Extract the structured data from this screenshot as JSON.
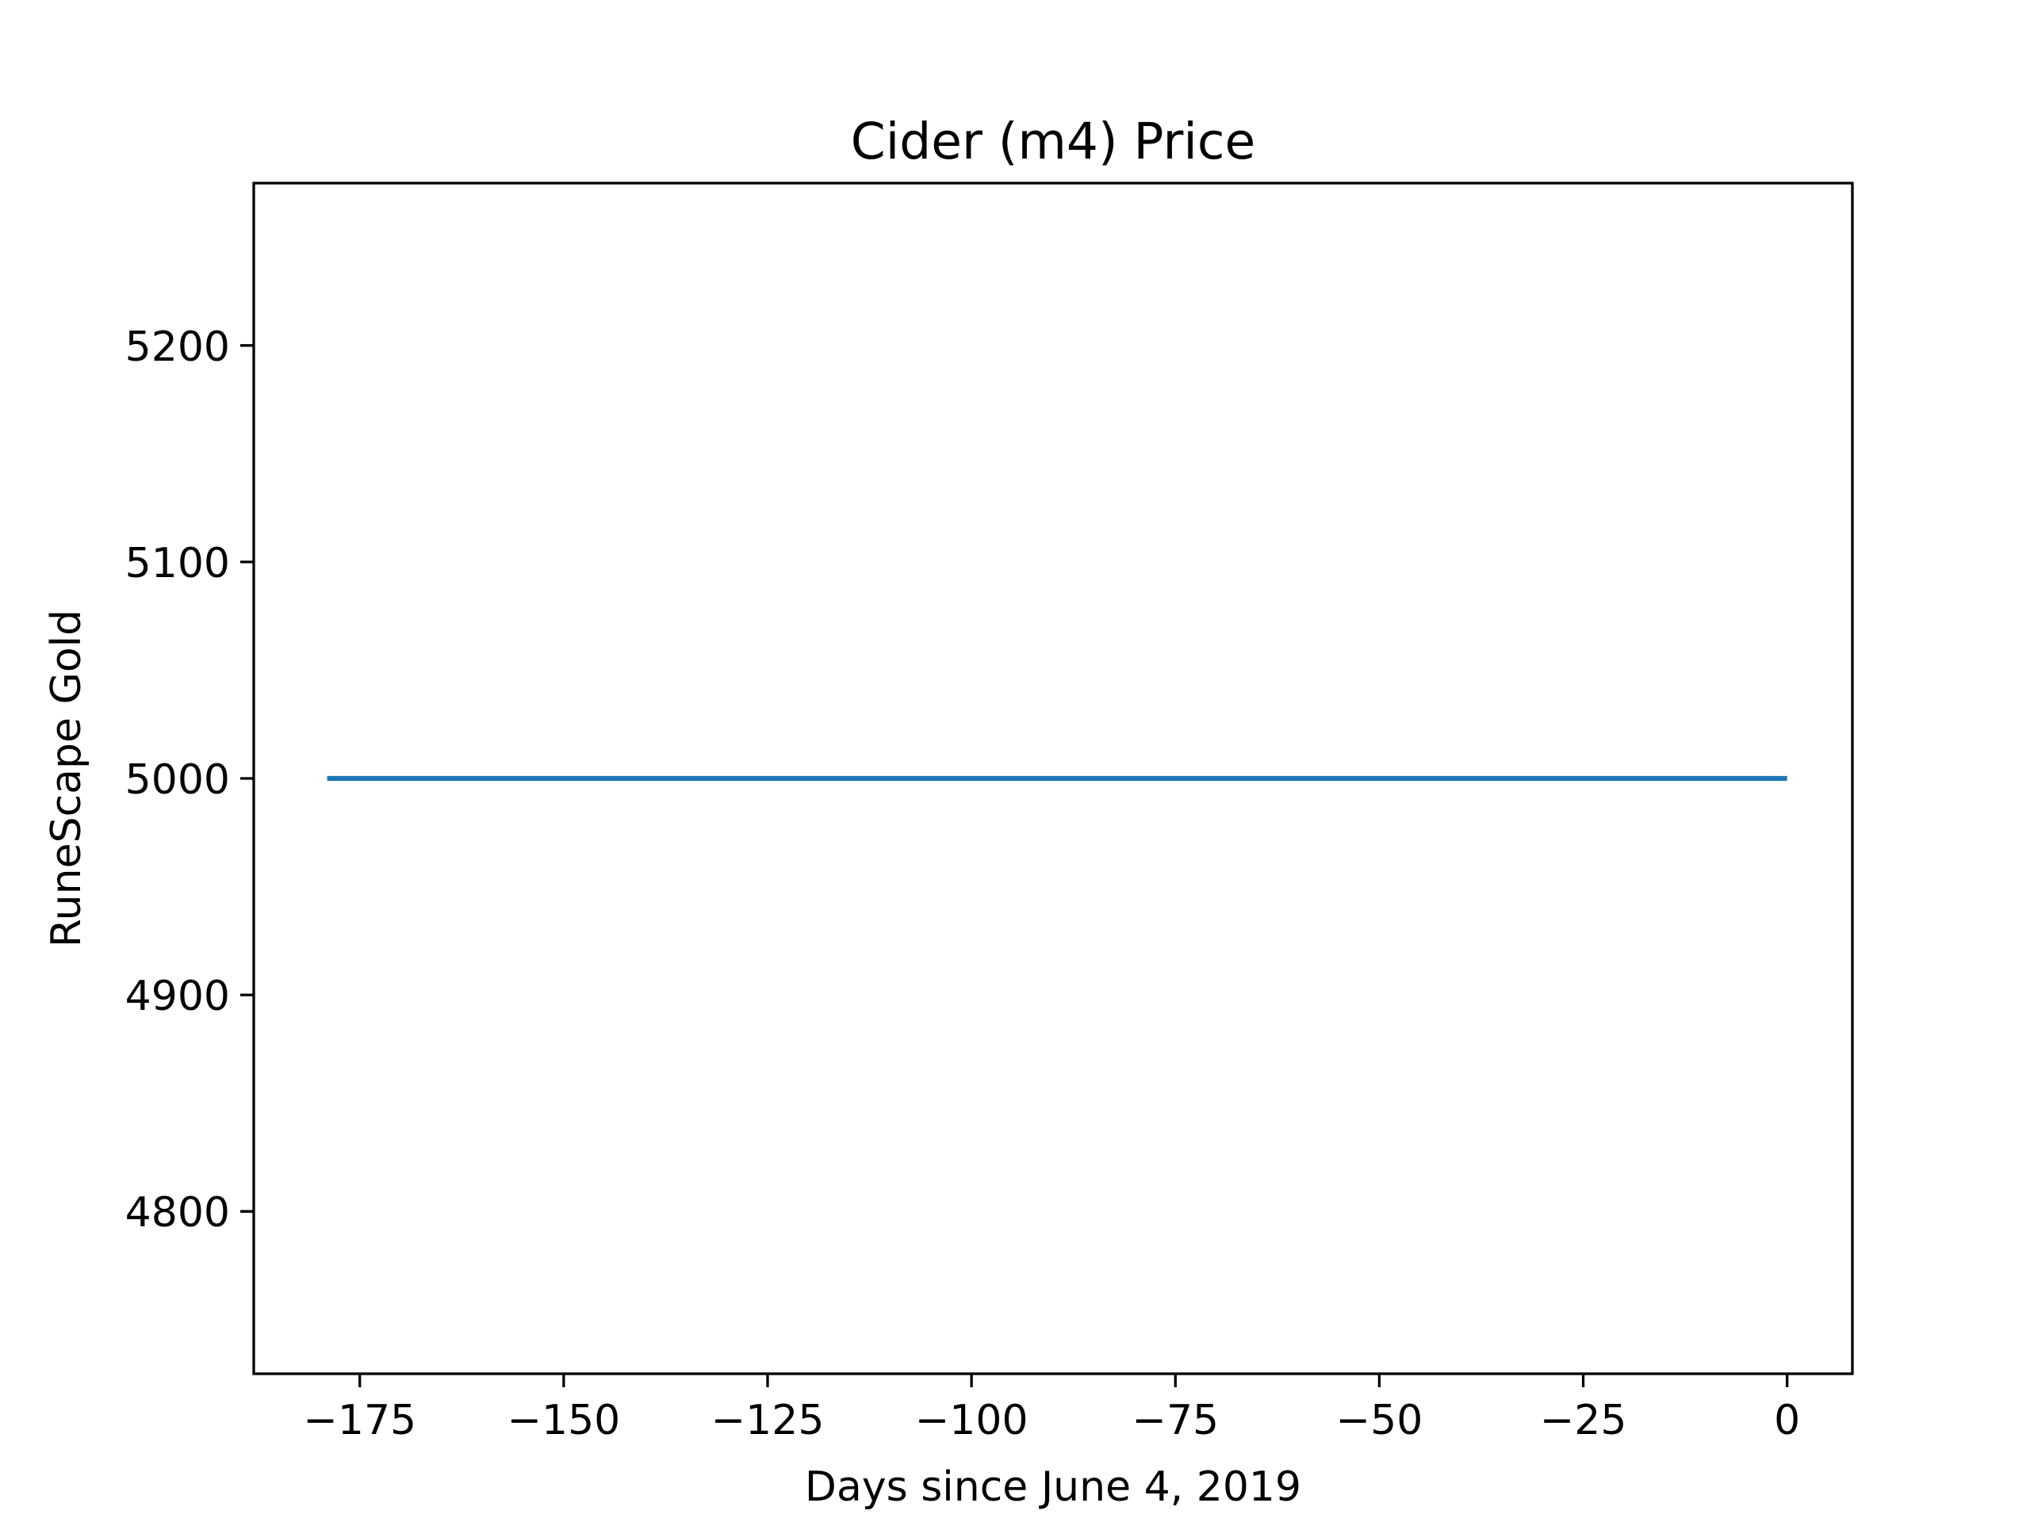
{
  "chart_data": {
    "type": "line",
    "title": "Cider (m4) Price",
    "xlabel": "Days since June 4, 2019",
    "ylabel": "RuneScape Gold",
    "xlim": [
      -188,
      8
    ],
    "ylim": [
      4725,
      5275
    ],
    "xticks": [
      -175,
      -150,
      -125,
      -100,
      -75,
      -50,
      -25,
      0
    ],
    "xtick_labels": [
      "−175",
      "−150",
      "−125",
      "−100",
      "−75",
      "−50",
      "−25",
      "0"
    ],
    "yticks": [
      4800,
      4900,
      5000,
      5100,
      5200
    ],
    "ytick_labels": [
      "4800",
      "4900",
      "5000",
      "5100",
      "5200"
    ],
    "grid": false,
    "series": [
      {
        "color": "#1f77b4",
        "x": [
          -179,
          0
        ],
        "y": [
          5000,
          5000
        ]
      }
    ]
  }
}
